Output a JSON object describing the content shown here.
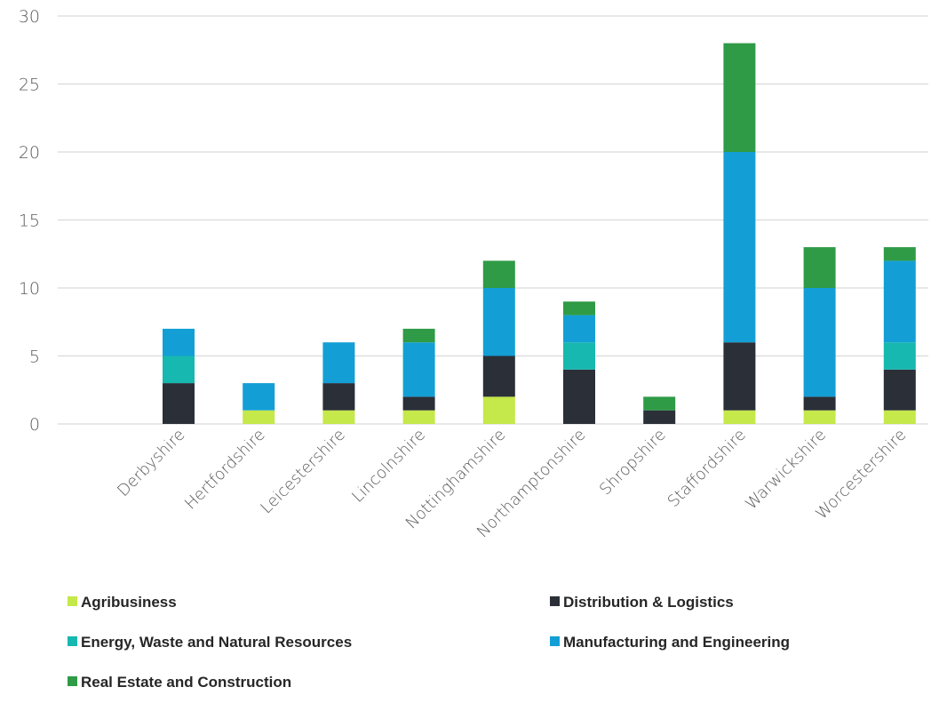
{
  "chart_data": {
    "type": "bar",
    "stacked": true,
    "categories": [
      "Derbyshire",
      "Hertfordshire",
      "Leicestershire",
      "Lincolnshire",
      "Nottinghamshire",
      "Northamptonshire",
      "Shropshire",
      "Staffordshire",
      "Warwickshire",
      "Worcestershire"
    ],
    "series": [
      {
        "name": "Agribusiness",
        "color": "#c5e84a",
        "values": [
          0,
          1,
          1,
          1,
          2,
          0,
          0,
          1,
          1,
          1
        ]
      },
      {
        "name": "Distribution & Logistics",
        "color": "#2b2f38",
        "values": [
          3,
          0,
          2,
          1,
          3,
          4,
          1,
          5,
          1,
          3
        ]
      },
      {
        "name": "Energy, Waste and Natural Resources",
        "color": "#17b8b0",
        "values": [
          2,
          0,
          0,
          0,
          0,
          2,
          0,
          0,
          0,
          2
        ]
      },
      {
        "name": "Manufacturing and Engineering",
        "color": "#139fd6",
        "values": [
          2,
          2,
          3,
          4,
          5,
          2,
          0,
          14,
          8,
          6
        ]
      },
      {
        "name": "Real Estate and Construction",
        "color": "#2f9b46",
        "values": [
          0,
          0,
          0,
          1,
          2,
          1,
          1,
          8,
          3,
          1
        ]
      }
    ],
    "title": "",
    "xlabel": "",
    "ylabel": "",
    "ylim": [
      0,
      30
    ],
    "yticks": [
      0,
      5,
      10,
      15,
      20,
      25,
      30
    ],
    "grid": true,
    "legend_position": "bottom"
  }
}
